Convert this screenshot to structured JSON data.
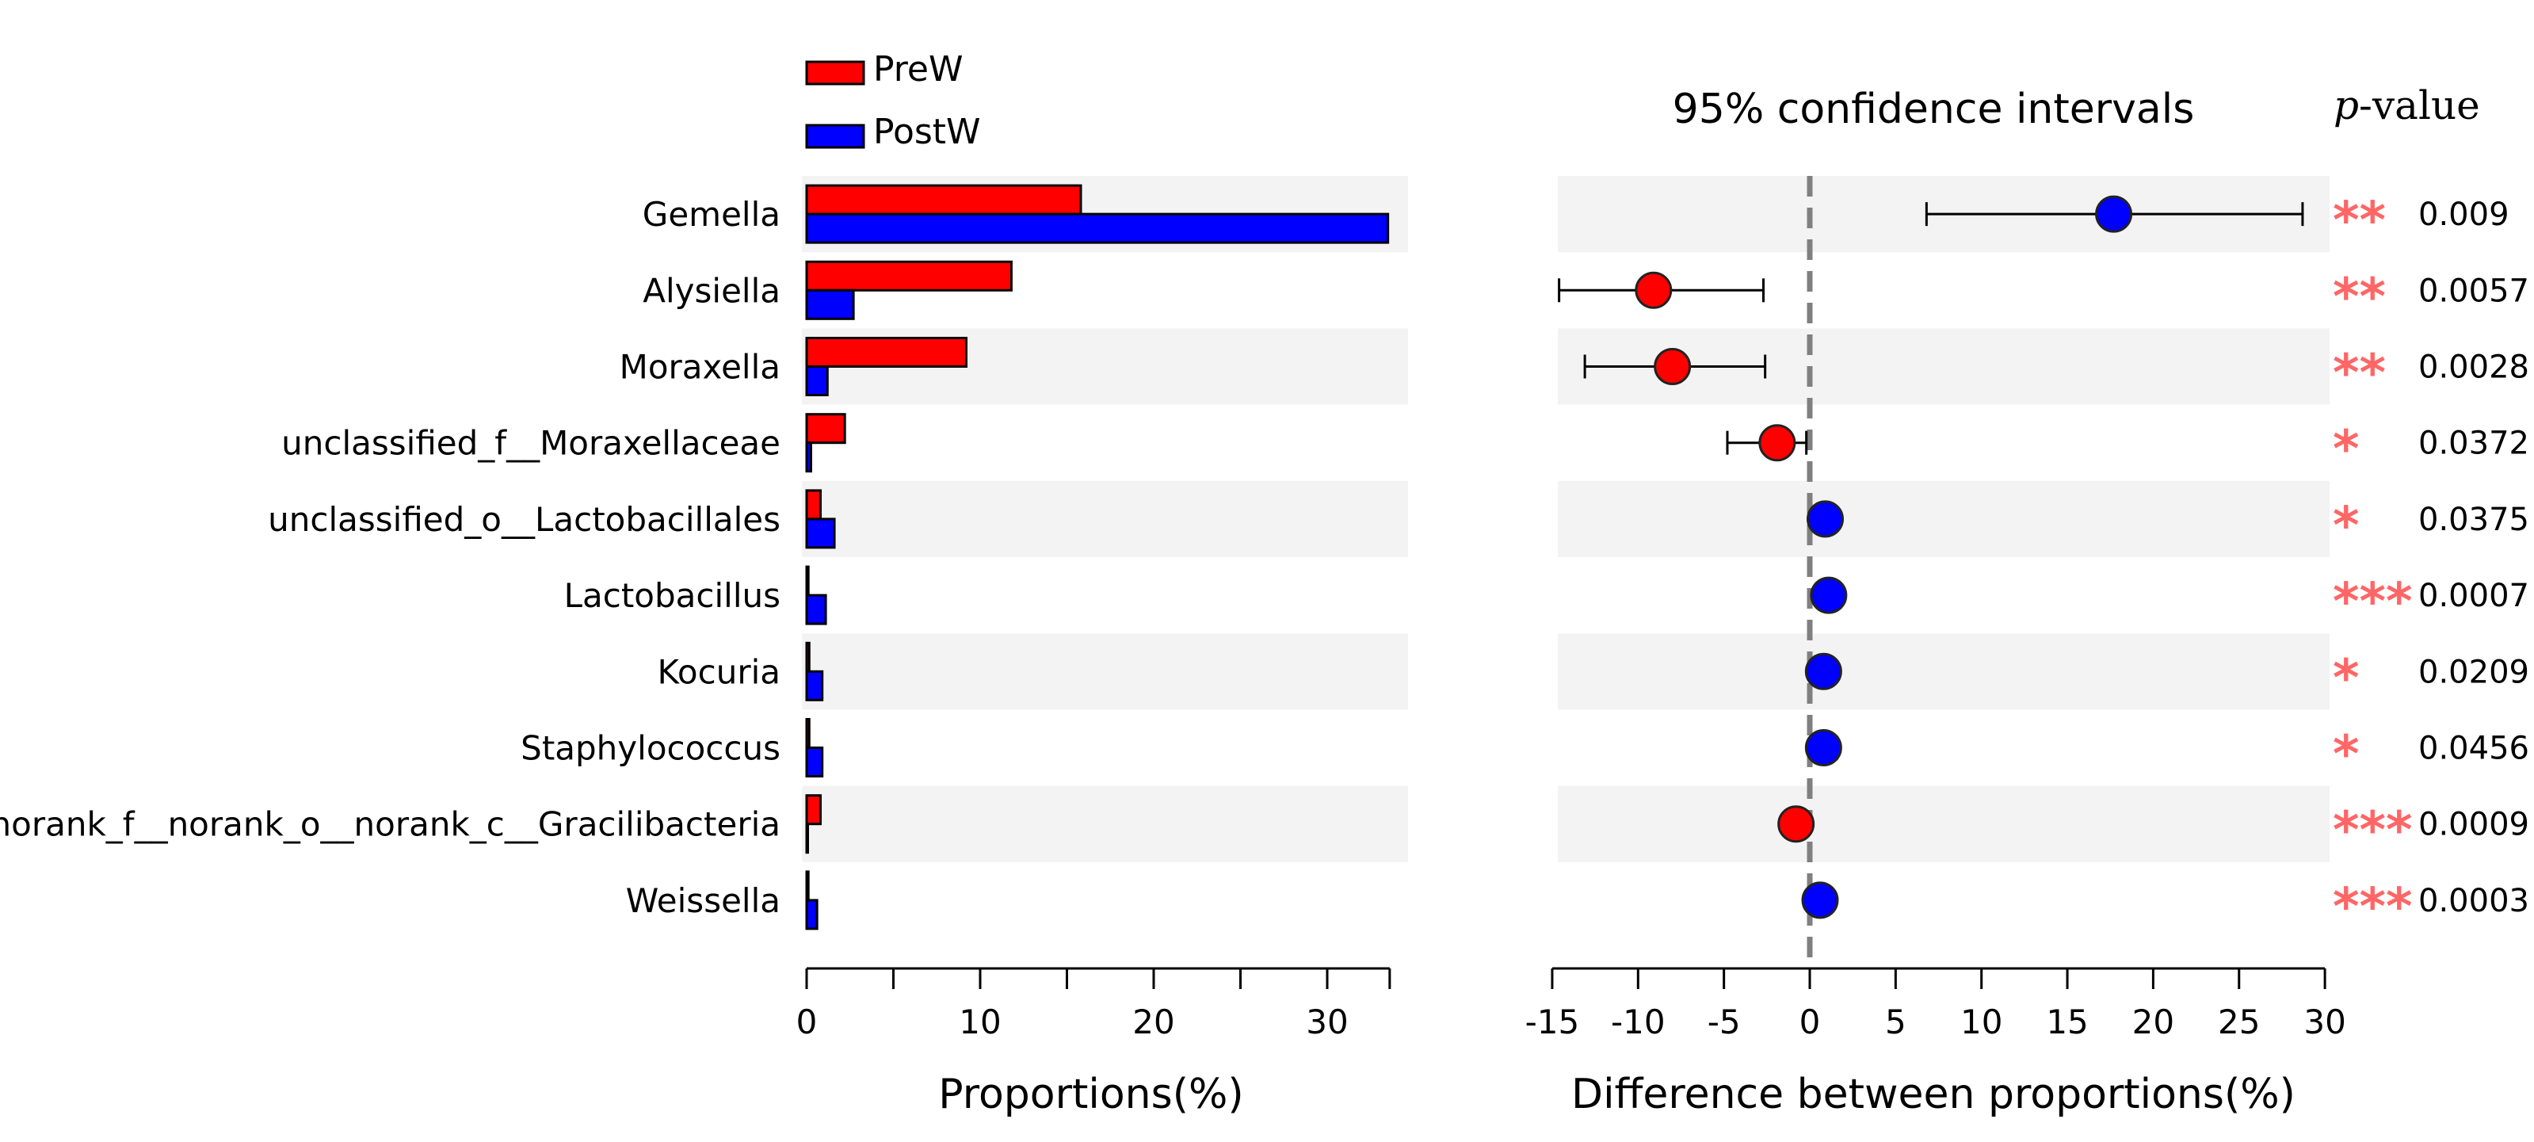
{
  "chart_data": [
    {
      "type": "bar",
      "orientation": "horizontal",
      "categories": [
        "Gemella",
        "Alysiella",
        "Moraxella",
        "unclassified_f__Moraxellaceae",
        "unclassified_o__Lactobacillales",
        "Lactobacillus",
        "Kocuria",
        "Staphylococcus",
        "norank_f__norank_o__norank_c__Gracilibacteria",
        "Weissella"
      ],
      "series": [
        {
          "name": "PreW",
          "color": "#ff0000",
          "values": [
            15.8,
            11.8,
            9.2,
            2.2,
            0.8,
            0.1,
            0.15,
            0.15,
            0.8,
            0.1
          ]
        },
        {
          "name": "PostW",
          "color": "#0000ff",
          "values": [
            33.5,
            2.7,
            1.2,
            0.25,
            1.6,
            1.1,
            0.9,
            0.9,
            0.05,
            0.6
          ]
        }
      ],
      "xlabel": "Proportions(%)",
      "xlim": [
        0,
        33.6
      ],
      "xticks": [
        0,
        10,
        20,
        30
      ],
      "legend": "top-left"
    },
    {
      "type": "scatter",
      "subtype": "confidence-interval",
      "title": "95% confidence intervals",
      "xlabel": "Difference between proportions(%)",
      "xlim": [
        -15,
        30
      ],
      "xticks": [
        -15,
        -10,
        -5,
        0,
        5,
        10,
        15,
        20,
        25,
        30
      ],
      "reference_line": 0,
      "points": [
        {
          "category": "Gemella",
          "diff": 17.7,
          "lower": 6.8,
          "upper": 28.7,
          "color": "#0000ff"
        },
        {
          "category": "Alysiella",
          "diff": -9.1,
          "lower": -14.6,
          "upper": -2.7,
          "color": "#ff0000"
        },
        {
          "category": "Moraxella",
          "diff": -8.0,
          "lower": -13.1,
          "upper": -2.6,
          "color": "#ff0000"
        },
        {
          "category": "unclassified_f__Moraxellaceae",
          "diff": -1.9,
          "lower": -4.8,
          "upper": -0.2,
          "color": "#ff0000"
        },
        {
          "category": "unclassified_o__Lactobacillales",
          "diff": 0.9,
          "lower": 0.4,
          "upper": 1.3,
          "color": "#0000ff"
        },
        {
          "category": "Lactobacillus",
          "diff": 1.1,
          "lower": 0.6,
          "upper": 1.7,
          "color": "#0000ff"
        },
        {
          "category": "Kocuria",
          "diff": 0.8,
          "lower": 0.3,
          "upper": 1.2,
          "color": "#0000ff"
        },
        {
          "category": "Staphylococcus",
          "diff": 0.8,
          "lower": 0.3,
          "upper": 1.6,
          "color": "#0000ff"
        },
        {
          "category": "norank_f__norank_o__norank_c__Gracilibacteria",
          "diff": -0.8,
          "lower": -1.4,
          "upper": -0.2,
          "color": "#ff0000"
        },
        {
          "category": "Weissella",
          "diff": 0.6,
          "lower": 0.2,
          "upper": 1.0,
          "color": "#0000ff"
        }
      ]
    },
    {
      "type": "table",
      "header": "p-value",
      "header_italic": "p",
      "header_rest": "-value",
      "significance_color": "#ff6666",
      "rows": [
        {
          "category": "Gemella",
          "stars": "**",
          "p": "0.009"
        },
        {
          "category": "Alysiella",
          "stars": "**",
          "p": "0.0057"
        },
        {
          "category": "Moraxella",
          "stars": "**",
          "p": "0.0028"
        },
        {
          "category": "unclassified_f__Moraxellaceae",
          "stars": "*",
          "p": "0.0372"
        },
        {
          "category": "unclassified_o__Lactobacillales",
          "stars": "*",
          "p": "0.0375"
        },
        {
          "category": "Lactobacillus",
          "stars": "***",
          "p": "0.0007"
        },
        {
          "category": "Kocuria",
          "stars": "*",
          "p": "0.0209"
        },
        {
          "category": "Staphylococcus",
          "stars": "*",
          "p": "0.0456"
        },
        {
          "category": "norank_f__norank_o__norank_c__Gracilibacteria",
          "stars": "***",
          "p": "0.0009"
        },
        {
          "category": "Weissella",
          "stars": "***",
          "p": "0.0003"
        }
      ]
    }
  ]
}
